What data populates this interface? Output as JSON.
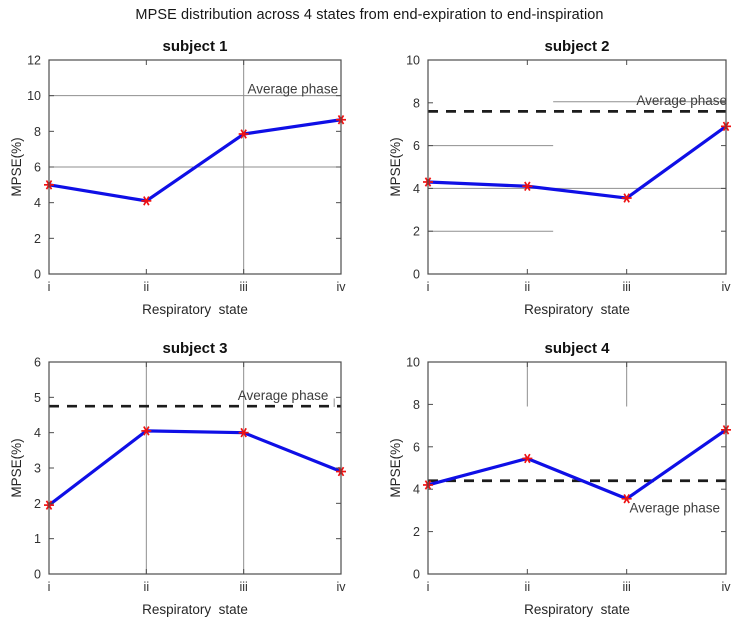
{
  "figure_title": "MPSE distribution across 4 states from end-expiration to end-inspiration",
  "colors": {
    "line": "#0f0fe6",
    "marker": "#ee1111",
    "average_dash": "#1c1c1c",
    "stray_line": "#8f8f8f",
    "axis": "#4d4d4d",
    "tick_text": "#303030",
    "title_text": "#111111",
    "label_text": "#262626",
    "annotation_text": "#3d3d3d"
  },
  "chart_data": [
    {
      "type": "line",
      "title": "subject 1",
      "xlabel": "Respiratory  state",
      "ylabel": "MPSE(%)",
      "categories": [
        "i",
        "ii",
        "iii",
        "iv"
      ],
      "values": [
        5.0,
        4.1,
        7.85,
        8.65
      ],
      "ylim": [
        0,
        12
      ],
      "yticks": [
        0,
        2,
        4,
        6,
        8,
        10,
        12
      ],
      "average_phase": null,
      "annotation": {
        "text": "Average phase",
        "x": 3.97,
        "y": 10.12,
        "anchor": "end"
      },
      "extra_lines": [
        {
          "x1": 1,
          "y1": 10,
          "x2": 4,
          "y2": 10
        },
        {
          "x1": 1,
          "y1": 6,
          "x2": 4,
          "y2": 6
        },
        {
          "x1": 3,
          "y1": 0,
          "x2": 3,
          "y2": 12
        }
      ]
    },
    {
      "type": "line",
      "title": "subject 2",
      "xlabel": "Respiratory  state",
      "ylabel": "MPSE(%)",
      "categories": [
        "i",
        "ii",
        "iii",
        "iv"
      ],
      "values": [
        4.3,
        4.1,
        3.55,
        6.9
      ],
      "ylim": [
        0,
        10
      ],
      "yticks": [
        0,
        2,
        4,
        6,
        8,
        10
      ],
      "average_phase": 7.6,
      "annotation": {
        "text": "Average phase",
        "x": 4.01,
        "y": 7.9,
        "anchor": "end"
      },
      "extra_lines": [
        {
          "x1": 2.26,
          "y1": 8.05,
          "x2": 4,
          "y2": 8.05
        },
        {
          "x1": 1,
          "y1": 6,
          "x2": 2.26,
          "y2": 6
        },
        {
          "x1": 1,
          "y1": 4,
          "x2": 4,
          "y2": 4
        },
        {
          "x1": 1,
          "y1": 2,
          "x2": 2.26,
          "y2": 2
        }
      ]
    },
    {
      "type": "line",
      "title": "subject 3",
      "xlabel": "Respiratory  state",
      "ylabel": "MPSE(%)",
      "categories": [
        "i",
        "ii",
        "iii",
        "iv"
      ],
      "values": [
        1.95,
        4.05,
        4.0,
        2.9
      ],
      "ylim": [
        0,
        6
      ],
      "yticks": [
        0,
        1,
        2,
        3,
        4,
        5,
        6
      ],
      "average_phase": 4.75,
      "annotation": {
        "text": "Average phase",
        "x": 3.87,
        "y": 4.92,
        "anchor": "end"
      },
      "extra_lines": [
        {
          "x1": 2,
          "y1": 0,
          "x2": 2,
          "y2": 6
        },
        {
          "x1": 3,
          "y1": 0,
          "x2": 3,
          "y2": 6
        },
        {
          "x1": 3.93,
          "y1": 4.73,
          "x2": 3.93,
          "y2": 4.97
        }
      ]
    },
    {
      "type": "line",
      "title": "subject 4",
      "xlabel": "Respiratory  state",
      "ylabel": "MPSE(%)",
      "categories": [
        "i",
        "ii",
        "iii",
        "iv"
      ],
      "values": [
        4.2,
        5.45,
        3.55,
        6.8
      ],
      "ylim": [
        0,
        10
      ],
      "yticks": [
        0,
        2,
        4,
        6,
        8,
        10
      ],
      "average_phase": 4.4,
      "annotation": {
        "text": "Average phase",
        "x": 3.94,
        "y": 2.9,
        "anchor": "end"
      },
      "extra_lines": [
        {
          "x1": 2,
          "y1": 7.9,
          "x2": 2,
          "y2": 10
        },
        {
          "x1": 3,
          "y1": 7.9,
          "x2": 3,
          "y2": 10
        }
      ]
    }
  ]
}
